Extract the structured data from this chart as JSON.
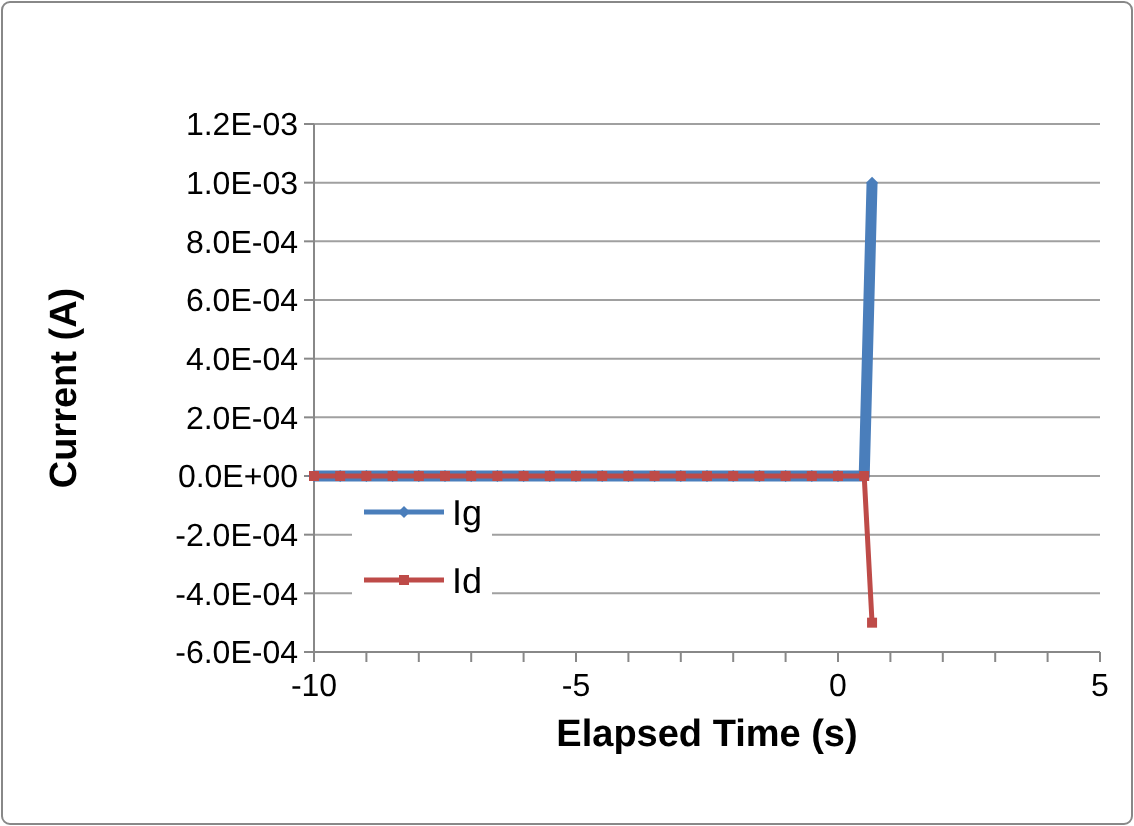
{
  "chart_data": {
    "type": "line",
    "xlabel": "Elapsed Time (s)",
    "ylabel": "Current (A)",
    "x": [
      -10,
      -9.5,
      -9,
      -8.5,
      -8,
      -7.5,
      -7,
      -6.5,
      -6,
      -5.5,
      -5,
      -4.5,
      -4,
      -3.5,
      -3,
      -2.5,
      -2,
      -1.5,
      -1,
      -0.5,
      0,
      0.5,
      0.65
    ],
    "series": [
      {
        "name": "Ig",
        "color": "#4a7ebb",
        "marker": "diamond",
        "values": [
          0,
          0,
          0,
          0,
          0,
          0,
          0,
          0,
          0,
          0,
          0,
          0,
          0,
          0,
          0,
          0,
          0,
          0,
          0,
          0,
          0,
          0,
          0.001
        ]
      },
      {
        "name": "Id",
        "color": "#be4b48",
        "marker": "square",
        "values": [
          0,
          0,
          0,
          0,
          0,
          0,
          0,
          0,
          0,
          0,
          0,
          0,
          0,
          0,
          0,
          0,
          0,
          0,
          0,
          0,
          0,
          0,
          -0.0005
        ]
      }
    ],
    "xlim": [
      -10,
      5
    ],
    "xticks": [
      -10,
      {
        "value": -9,
        "label": null
      },
      {
        "value": -8,
        "label": null
      },
      {
        "value": -7,
        "label": null
      },
      {
        "value": -6,
        "label": null
      },
      -5,
      {
        "value": -4,
        "label": null
      },
      {
        "value": -3,
        "label": null
      },
      {
        "value": -2,
        "label": null
      },
      {
        "value": -1,
        "label": null
      },
      0,
      {
        "value": 1,
        "label": null
      },
      {
        "value": 2,
        "label": null
      },
      {
        "value": 3,
        "label": null
      },
      {
        "value": 4,
        "label": null
      },
      5
    ],
    "ylim": [
      -0.0006,
      0.0012
    ],
    "yticks": [
      {
        "value": -0.0006,
        "label": "-6.0E-04"
      },
      {
        "value": -0.0004,
        "label": "-4.0E-04"
      },
      {
        "value": -0.0002,
        "label": "-2.0E-04"
      },
      {
        "value": 0,
        "label": "0.0E+00"
      },
      {
        "value": 0.0002,
        "label": "2.0E-04"
      },
      {
        "value": 0.0004,
        "label": "4.0E-04"
      },
      {
        "value": 0.0006,
        "label": "6.0E-04"
      },
      {
        "value": 0.0008,
        "label": "8.0E-04"
      },
      {
        "value": 0.001,
        "label": "1.0E-03"
      },
      {
        "value": 0.0012,
        "label": "1.2E-03"
      }
    ],
    "grid": "y",
    "legend": "bottom left",
    "line_style": "solid"
  }
}
